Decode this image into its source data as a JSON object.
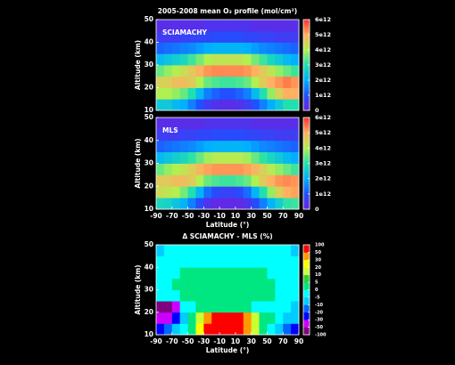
{
  "chart_data": [
    {
      "type": "heatmap",
      "title": "2005-2008 mean O₃ profile (mol/cm²)",
      "label": "SCIAMACHY",
      "ylabel": "Altitude (km)",
      "xlim": [
        -90,
        90
      ],
      "ylim": [
        10,
        50
      ],
      "yticks": [
        10,
        20,
        30,
        40,
        50
      ],
      "x_bins": [
        -90,
        -80,
        -70,
        -60,
        -50,
        -40,
        -30,
        -20,
        -10,
        0,
        10,
        20,
        30,
        40,
        50,
        60,
        70,
        80,
        90
      ],
      "y_bins": [
        10,
        15,
        20,
        25,
        30,
        35,
        40,
        45,
        50
      ],
      "zlim": [
        0,
        6000000000000.0
      ],
      "zticks": [
        0,
        {
          "value": 1000000000000.0,
          "label": "1e12"
        },
        {
          "value": 2000000000000.0,
          "label": "2e12"
        },
        {
          "value": 3000000000000.0,
          "label": "3e12"
        },
        {
          "value": 4000000000000.0,
          "label": "4e12"
        },
        {
          "value": 5000000000000.0,
          "label": "5e12"
        },
        {
          "value": 6000000000000.0,
          "label": "6e12"
        }
      ],
      "colorscale": [
        "#7020e0",
        "#2050ff",
        "#00b0ff",
        "#20e0b0",
        "#b0f050",
        "#ffb060",
        "#ff3030"
      ],
      "values": [
        [
          2500000000000.0,
          2500000000000.0,
          2200000000000.0,
          2000000000000.0,
          1500000000000.0,
          1000000000000.0,
          600000000000.0,
          400000000000.0,
          300000000000.0,
          300000000000.0,
          400000000000.0,
          600000000000.0,
          1000000000000.0,
          1500000000000.0,
          2000000000000.0,
          2500000000000.0,
          3000000000000.0,
          3000000000000.0
        ],
        [
          4000000000000.0,
          4000000000000.0,
          3800000000000.0,
          3500000000000.0,
          3000000000000.0,
          2200000000000.0,
          1500000000000.0,
          1200000000000.0,
          1000000000000.0,
          1000000000000.0,
          1200000000000.0,
          1500000000000.0,
          2200000000000.0,
          3000000000000.0,
          3800000000000.0,
          4500000000000.0,
          5000000000000.0,
          5000000000000.0
        ],
        [
          4500000000000.0,
          4500000000000.0,
          4800000000000.0,
          4800000000000.0,
          4600000000000.0,
          4000000000000.0,
          3500000000000.0,
          3300000000000.0,
          3200000000000.0,
          3200000000000.0,
          3300000000000.0,
          3500000000000.0,
          4000000000000.0,
          4600000000000.0,
          5000000000000.0,
          5200000000000.0,
          5400000000000.0,
          5200000000000.0
        ],
        [
          3500000000000.0,
          3800000000000.0,
          4000000000000.0,
          4300000000000.0,
          4600000000000.0,
          5000000000000.0,
          5200000000000.0,
          5300000000000.0,
          5300000000000.0,
          5300000000000.0,
          5300000000000.0,
          5200000000000.0,
          5000000000000.0,
          4600000000000.0,
          4200000000000.0,
          3800000000000.0,
          3500000000000.0,
          3200000000000.0
        ],
        [
          2200000000000.0,
          2400000000000.0,
          2600000000000.0,
          2800000000000.0,
          3200000000000.0,
          3600000000000.0,
          4000000000000.0,
          4200000000000.0,
          4200000000000.0,
          4200000000000.0,
          4200000000000.0,
          4000000000000.0,
          3600000000000.0,
          3200000000000.0,
          2800000000000.0,
          2500000000000.0,
          2200000000000.0,
          2000000000000.0
        ],
        [
          1200000000000.0,
          1300000000000.0,
          1400000000000.0,
          1500000000000.0,
          1600000000000.0,
          1800000000000.0,
          2000000000000.0,
          2100000000000.0,
          2100000000000.0,
          2100000000000.0,
          2100000000000.0,
          2000000000000.0,
          1800000000000.0,
          1600000000000.0,
          1500000000000.0,
          1400000000000.0,
          1300000000000.0,
          1200000000000.0
        ],
        [
          600000000000.0,
          600000000000.0,
          600000000000.0,
          700000000000.0,
          700000000000.0,
          800000000000.0,
          800000000000.0,
          900000000000.0,
          900000000000.0,
          900000000000.0,
          900000000000.0,
          800000000000.0,
          800000000000.0,
          700000000000.0,
          700000000000.0,
          600000000000.0,
          600000000000.0,
          600000000000.0
        ],
        [
          300000000000.0,
          300000000000.0,
          300000000000.0,
          300000000000.0,
          300000000000.0,
          300000000000.0,
          400000000000.0,
          400000000000.0,
          400000000000.0,
          400000000000.0,
          400000000000.0,
          400000000000.0,
          300000000000.0,
          300000000000.0,
          300000000000.0,
          300000000000.0,
          300000000000.0,
          300000000000.0
        ]
      ]
    },
    {
      "type": "heatmap",
      "label": "MLS",
      "ylabel": "Altitude (km)",
      "xlabel": "Latitude (°)",
      "xlim": [
        -90,
        90
      ],
      "ylim": [
        10,
        50
      ],
      "yticks": [
        10,
        20,
        30,
        40,
        50
      ],
      "xticks": [
        -90,
        -70,
        -50,
        -30,
        -10,
        10,
        30,
        50,
        70,
        90
      ],
      "x_bins": [
        -90,
        -80,
        -70,
        -60,
        -50,
        -40,
        -30,
        -20,
        -10,
        0,
        10,
        20,
        30,
        40,
        50,
        60,
        70,
        80,
        90
      ],
      "y_bins": [
        10,
        15,
        20,
        25,
        30,
        35,
        40,
        45,
        50
      ],
      "zlim": [
        0,
        6000000000000.0
      ],
      "zticks": [
        0,
        {
          "value": 1000000000000.0,
          "label": "1e12"
        },
        {
          "value": 2000000000000.0,
          "label": "2e12"
        },
        {
          "value": 3000000000000.0,
          "label": "3e12"
        },
        {
          "value": 4000000000000.0,
          "label": "4e12"
        },
        {
          "value": 5000000000000.0,
          "label": "5e12"
        },
        {
          "value": 6000000000000.0,
          "label": "6e12"
        }
      ],
      "colorscale": [
        "#7020e0",
        "#2050ff",
        "#00b0ff",
        "#20e0b0",
        "#b0f050",
        "#ffb060",
        "#ff3030"
      ],
      "values": [
        [
          2800000000000.0,
          2700000000000.0,
          2400000000000.0,
          2100000000000.0,
          1500000000000.0,
          900000000000.0,
          400000000000.0,
          200000000000.0,
          200000000000.0,
          200000000000.0,
          200000000000.0,
          400000000000.0,
          900000000000.0,
          1500000000000.0,
          2100000000000.0,
          2600000000000.0,
          3100000000000.0,
          3200000000000.0
        ],
        [
          4300000000000.0,
          4200000000000.0,
          4000000000000.0,
          3600000000000.0,
          3000000000000.0,
          2100000000000.0,
          1300000000000.0,
          900000000000.0,
          700000000000.0,
          700000000000.0,
          900000000000.0,
          1300000000000.0,
          2100000000000.0,
          3000000000000.0,
          3800000000000.0,
          4500000000000.0,
          5000000000000.0,
          5100000000000.0
        ],
        [
          4600000000000.0,
          4600000000000.0,
          4800000000000.0,
          4800000000000.0,
          4600000000000.0,
          4000000000000.0,
          3500000000000.0,
          3300000000000.0,
          3200000000000.0,
          3200000000000.0,
          3300000000000.0,
          3500000000000.0,
          4000000000000.0,
          4600000000000.0,
          5000000000000.0,
          5200000000000.0,
          5300000000000.0,
          5200000000000.0
        ],
        [
          3500000000000.0,
          3800000000000.0,
          4000000000000.0,
          4200000000000.0,
          4500000000000.0,
          4900000000000.0,
          5100000000000.0,
          5200000000000.0,
          5200000000000.0,
          5200000000000.0,
          5200000000000.0,
          5100000000000.0,
          4900000000000.0,
          4500000000000.0,
          4100000000000.0,
          3800000000000.0,
          3500000000000.0,
          3200000000000.0
        ],
        [
          2200000000000.0,
          2400000000000.0,
          2600000000000.0,
          2800000000000.0,
          3100000000000.0,
          3500000000000.0,
          3900000000000.0,
          4100000000000.0,
          4100000000000.0,
          4100000000000.0,
          4100000000000.0,
          3900000000000.0,
          3500000000000.0,
          3100000000000.0,
          2800000000000.0,
          2500000000000.0,
          2200000000000.0,
          2000000000000.0
        ],
        [
          1200000000000.0,
          1300000000000.0,
          1400000000000.0,
          1500000000000.0,
          1600000000000.0,
          1800000000000.0,
          2000000000000.0,
          2100000000000.0,
          2100000000000.0,
          2100000000000.0,
          2100000000000.0,
          2000000000000.0,
          1800000000000.0,
          1600000000000.0,
          1500000000000.0,
          1400000000000.0,
          1300000000000.0,
          1200000000000.0
        ],
        [
          600000000000.0,
          600000000000.0,
          600000000000.0,
          700000000000.0,
          700000000000.0,
          800000000000.0,
          800000000000.0,
          900000000000.0,
          900000000000.0,
          900000000000.0,
          900000000000.0,
          800000000000.0,
          800000000000.0,
          700000000000.0,
          700000000000.0,
          600000000000.0,
          600000000000.0,
          600000000000.0
        ],
        [
          300000000000.0,
          300000000000.0,
          300000000000.0,
          300000000000.0,
          300000000000.0,
          300000000000.0,
          400000000000.0,
          400000000000.0,
          400000000000.0,
          400000000000.0,
          400000000000.0,
          400000000000.0,
          300000000000.0,
          300000000000.0,
          300000000000.0,
          300000000000.0,
          300000000000.0,
          300000000000.0
        ]
      ]
    },
    {
      "type": "heatmap",
      "title": "Δ SCIAMACHY - MLS (%)",
      "ylabel": "Altitude (km)",
      "xlabel": "Latitude (°)",
      "xlim": [
        -90,
        90
      ],
      "ylim": [
        10,
        50
      ],
      "yticks": [
        10,
        20,
        30,
        40,
        50
      ],
      "xticks": [
        -90,
        -70,
        -50,
        -30,
        -10,
        10,
        30,
        50,
        70,
        90
      ],
      "x_bins": [
        -90,
        -80,
        -70,
        -60,
        -50,
        -40,
        -30,
        -20,
        -10,
        0,
        10,
        20,
        30,
        40,
        50,
        60,
        70,
        80,
        90
      ],
      "y_bins": [
        10,
        15,
        20,
        25,
        30,
        35,
        40,
        45,
        50
      ],
      "zticks": [
        -100,
        -50,
        -30,
        -20,
        -10,
        -5,
        0,
        5,
        10,
        20,
        30,
        50,
        100
      ],
      "bin_colors": [
        "#800080",
        "#cc00ff",
        "#0000ff",
        "#0066ff",
        "#00ccff",
        "#00ffff",
        "#00e680",
        "#33cc33",
        "#ccff33",
        "#ffff00",
        "#ff9900",
        "#ff0000"
      ],
      "values": [
        [
          -30,
          -20,
          -10,
          -5,
          0,
          20,
          60,
          80,
          80,
          80,
          60,
          40,
          10,
          0,
          -5,
          -10,
          -20,
          -30
        ],
        [
          -40,
          -40,
          -30,
          -10,
          0,
          10,
          30,
          60,
          70,
          70,
          50,
          30,
          10,
          0,
          0,
          -5,
          -10,
          -10
        ],
        [
          -60,
          -60,
          -40,
          -5,
          -3,
          2,
          3,
          3,
          2,
          3,
          3,
          2,
          -2,
          -3,
          -3,
          -5,
          -5,
          -10
        ],
        [
          -3,
          -2,
          -2,
          3,
          3,
          3,
          3,
          3,
          3,
          3,
          3,
          3,
          3,
          3,
          3,
          -2,
          -2,
          -3
        ],
        [
          -3,
          -2,
          3,
          3,
          3,
          3,
          3,
          3,
          3,
          3,
          3,
          3,
          3,
          3,
          3,
          -2,
          -3,
          -3
        ],
        [
          -3,
          -3,
          -2,
          3,
          3,
          3,
          3,
          3,
          3,
          3,
          3,
          3,
          3,
          3,
          -2,
          -2,
          -3,
          -3
        ],
        [
          -3,
          -3,
          -3,
          -2,
          -2,
          -2,
          -2,
          -2,
          -2,
          -2,
          -2,
          -2,
          -2,
          -2,
          -3,
          -3,
          -3,
          -3
        ],
        [
          -7,
          -3,
          -3,
          -3,
          -3,
          -3,
          -3,
          -3,
          -3,
          -3,
          -3,
          -3,
          -3,
          -3,
          -3,
          -3,
          -3,
          -7
        ]
      ]
    }
  ]
}
